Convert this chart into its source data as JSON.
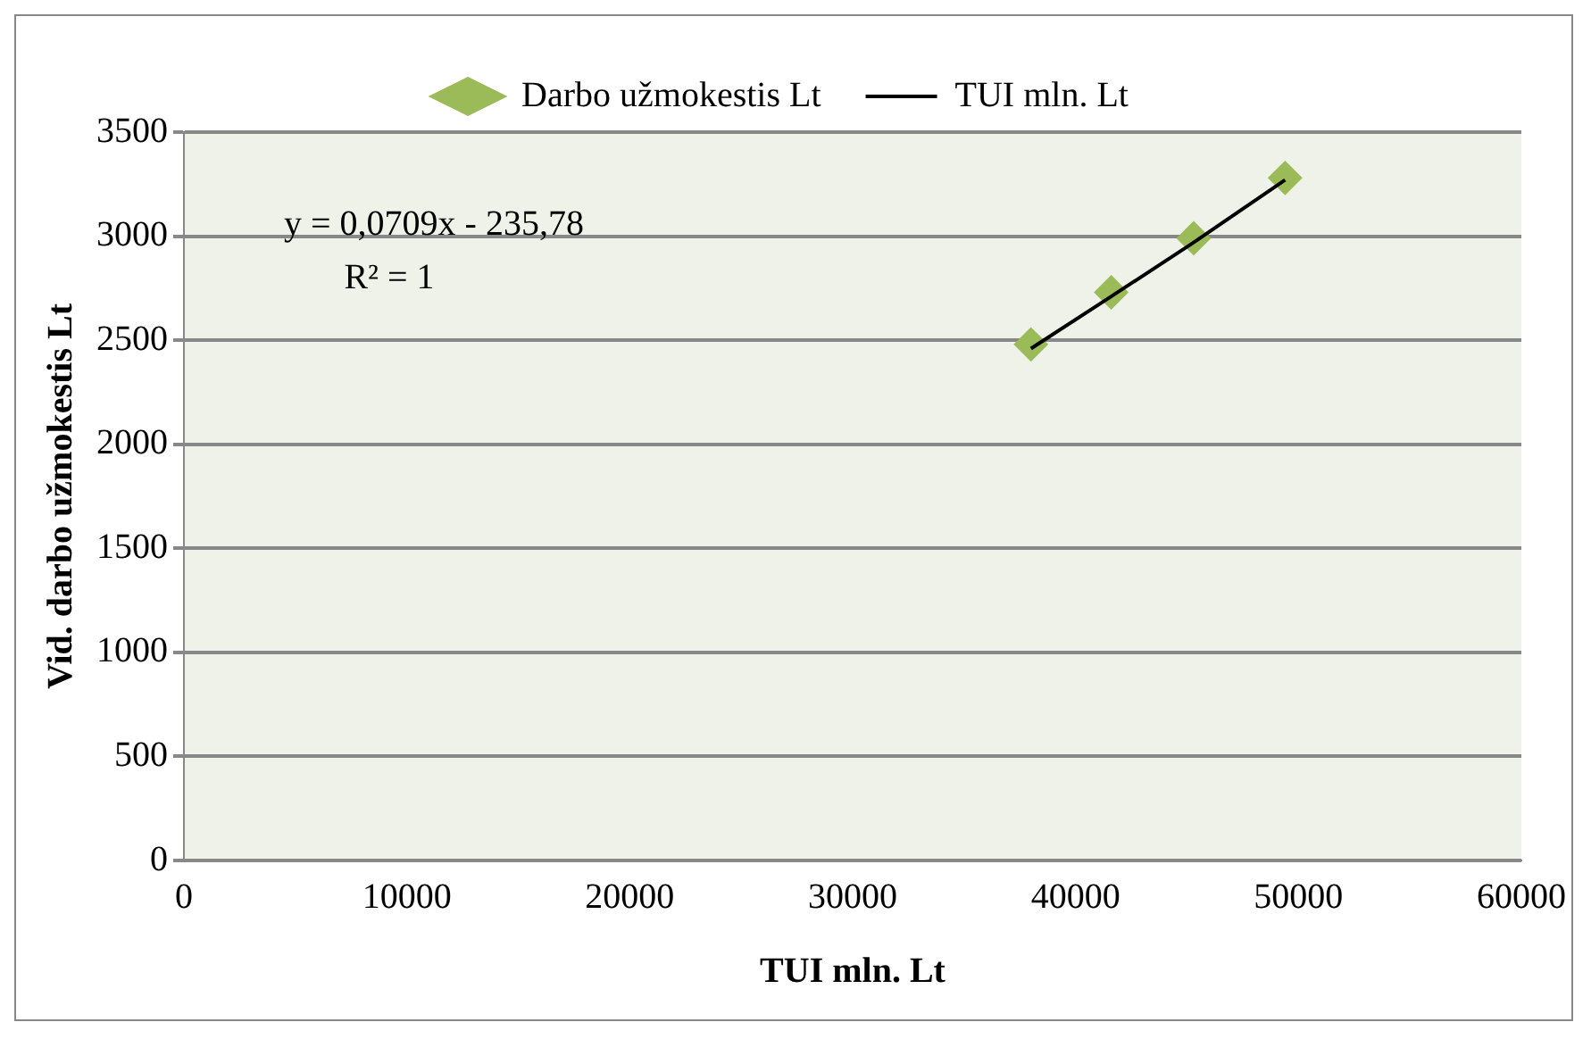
{
  "chart_data": {
    "type": "scatter",
    "xlabel": "TUI mln. Lt",
    "ylabel": "Vid. darbo užmokestis Lt",
    "x": [
      38000,
      41600,
      45300,
      49400
    ],
    "series": [
      {
        "name": "Darbo užmokestis Lt",
        "color": "#9bbb59",
        "marker": "diamond",
        "values": [
          2480,
          2730,
          2990,
          3280
        ]
      },
      {
        "name": "TUI mln. Lt",
        "type": "line",
        "color": "#000000",
        "marker": "none",
        "line_style": "solid",
        "values": [
          2460,
          2710,
          2970,
          3270
        ]
      }
    ],
    "annotations": [
      "y = 0,0709x - 235,78",
      "R² = 1"
    ],
    "xlim": [
      0,
      60000
    ],
    "xticks": [
      0,
      10000,
      20000,
      30000,
      40000,
      50000,
      60000
    ],
    "ylim": [
      0,
      3500
    ],
    "yticks": [
      0,
      500,
      1000,
      1500,
      2000,
      2500,
      3000,
      3500
    ],
    "grid": "y",
    "legend": "top"
  }
}
